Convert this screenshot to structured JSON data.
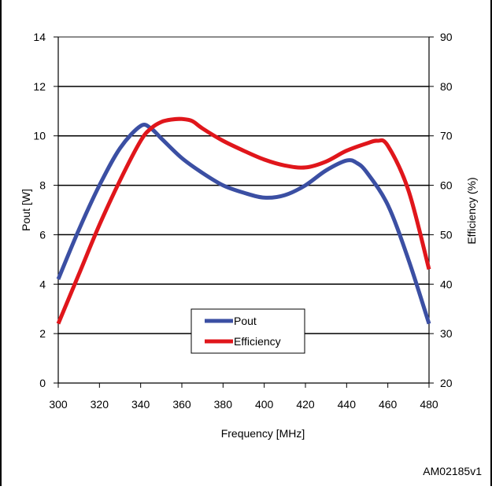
{
  "chart_data": {
    "type": "line",
    "xlabel": "Frequency  [MHz]",
    "ylabel": "Pout [W]",
    "y2label": "Efficiency (%)",
    "xlim": [
      300,
      480
    ],
    "ylim": [
      0,
      14
    ],
    "y2lim": [
      20,
      90
    ],
    "xticks": [
      "300",
      "320",
      "340",
      "360",
      "380",
      "400",
      "420",
      "440",
      "460",
      "480"
    ],
    "yticks": [
      "0",
      "2",
      "4",
      "6",
      "8",
      "10",
      "12",
      "14"
    ],
    "y2ticks": [
      "20",
      "30",
      "40",
      "50",
      "60",
      "70",
      "80",
      "90"
    ],
    "grid": "horizontal",
    "legend_position": "bottom-center",
    "series": [
      {
        "name": "Pout",
        "axis": "left",
        "color": "#3b4fa3",
        "x": [
          300,
          310,
          320,
          330,
          340,
          345,
          350,
          360,
          370,
          380,
          390,
          400,
          410,
          420,
          430,
          440,
          445,
          450,
          460,
          470,
          480
        ],
        "y": [
          4.2,
          6.2,
          8.0,
          9.5,
          10.4,
          10.3,
          9.9,
          9.1,
          8.5,
          8.0,
          7.7,
          7.5,
          7.6,
          8.0,
          8.6,
          9.0,
          8.9,
          8.5,
          7.2,
          5.0,
          2.4
        ]
      },
      {
        "name": "Efficiency",
        "axis": "right",
        "color": "#e0161b",
        "x": [
          300,
          310,
          320,
          330,
          340,
          345,
          350,
          355,
          360,
          365,
          370,
          380,
          390,
          400,
          410,
          420,
          430,
          440,
          450,
          455,
          460,
          470,
          480
        ],
        "y": [
          32,
          42,
          52,
          61,
          69,
          71.5,
          72.8,
          73.3,
          73.4,
          73.0,
          71.5,
          69.0,
          67.0,
          65.2,
          64.0,
          63.6,
          64.8,
          67.0,
          68.5,
          69.0,
          68.0,
          59.0,
          43.0
        ]
      }
    ]
  },
  "watermark": "AM02185v1"
}
